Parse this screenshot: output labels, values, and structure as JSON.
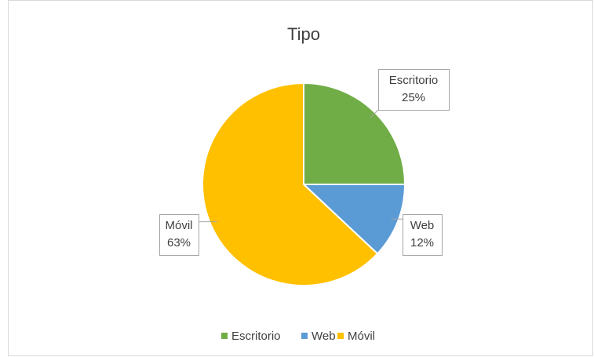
{
  "chart_data": {
    "type": "pie",
    "title": "Tipo",
    "categories": [
      "Escritorio",
      "Web",
      "Móvil"
    ],
    "values": [
      25,
      12,
      63
    ],
    "value_labels": [
      "25%",
      "12%",
      "63%"
    ],
    "colors": [
      "#70ad47",
      "#5b9bd5",
      "#ffc000"
    ],
    "legend": "bottom"
  }
}
